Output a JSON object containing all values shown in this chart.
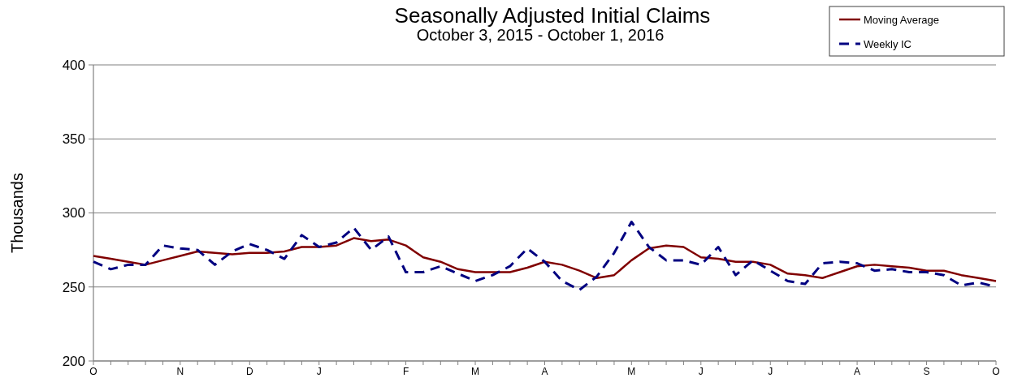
{
  "chart_data": {
    "type": "line",
    "title": "Seasonally Adjusted Initial Claims",
    "subtitle": "October 3, 2015  -  October 1, 2016",
    "ylabel": "Thousands",
    "categories": [
      "O",
      null,
      null,
      null,
      null,
      "N",
      null,
      null,
      null,
      "D",
      null,
      null,
      null,
      "J",
      null,
      null,
      null,
      null,
      "F",
      null,
      null,
      null,
      "M",
      null,
      null,
      null,
      "A",
      null,
      null,
      null,
      null,
      "M",
      null,
      null,
      null,
      "J",
      null,
      null,
      null,
      "J",
      null,
      null,
      null,
      null,
      "A",
      null,
      null,
      null,
      "S",
      null,
      null,
      null,
      "O"
    ],
    "series": [
      {
        "name": "Moving Average",
        "color": "#800000",
        "line_style": "solid",
        "values": [
          271,
          269,
          267,
          265,
          268,
          271,
          274,
          273,
          272,
          273,
          273,
          274,
          277,
          277,
          278,
          283,
          281,
          282,
          278,
          270,
          267,
          262,
          260,
          260,
          260,
          263,
          267,
          265,
          261,
          256,
          258,
          268,
          276,
          278,
          277,
          270,
          269,
          267,
          267,
          265,
          259,
          258,
          256,
          260,
          264,
          265,
          264,
          263,
          261,
          261,
          258,
          256,
          254
        ]
      },
      {
        "name": "Weekly IC",
        "color": "#000080",
        "line_style": "dashed",
        "values": [
          267,
          262,
          265,
          265,
          278,
          276,
          275,
          265,
          274,
          279,
          275,
          269,
          285,
          277,
          280,
          290,
          275,
          284,
          260,
          260,
          264,
          259,
          254,
          258,
          264,
          276,
          267,
          254,
          248,
          257,
          273,
          294,
          277,
          268,
          268,
          265,
          277,
          258,
          268,
          261,
          254,
          252,
          266,
          267,
          266,
          261,
          262,
          260,
          260,
          258,
          251,
          253,
          250
        ]
      }
    ],
    "ylim": [
      200,
      400
    ],
    "yticks": [
      200,
      250,
      300,
      350,
      400
    ],
    "grid": "y",
    "legend": "top right"
  }
}
